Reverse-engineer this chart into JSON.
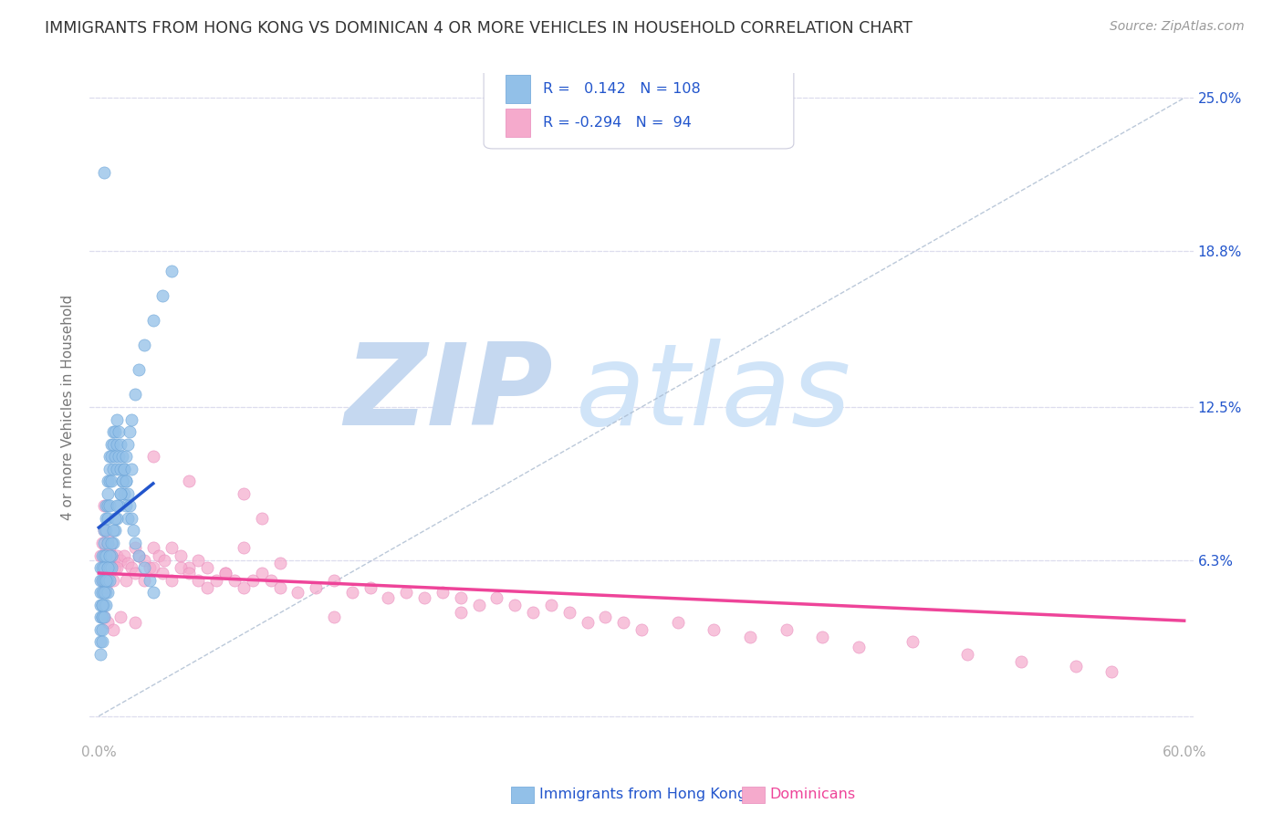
{
  "title": "IMMIGRANTS FROM HONG KONG VS DOMINICAN 4 OR MORE VEHICLES IN HOUSEHOLD CORRELATION CHART",
  "source": "Source: ZipAtlas.com",
  "xlabel_blue": "Immigrants from Hong Kong",
  "xlabel_pink": "Dominicans",
  "ylabel": "4 or more Vehicles in Household",
  "xlim": [
    -0.005,
    0.605
  ],
  "ylim": [
    -0.01,
    0.26
  ],
  "xticks": [
    0.0,
    0.1,
    0.2,
    0.3,
    0.4,
    0.5,
    0.6
  ],
  "xticklabels": [
    "0.0%",
    "",
    "",
    "",
    "",
    "",
    "60.0%"
  ],
  "yticks": [
    0.0,
    0.063,
    0.125,
    0.188,
    0.25
  ],
  "yticklabels_left": [
    "",
    "",
    "",
    "",
    ""
  ],
  "yticklabels_right": [
    "",
    "6.3%",
    "12.5%",
    "18.8%",
    "25.0%"
  ],
  "R_blue": 0.142,
  "N_blue": 108,
  "R_pink": -0.294,
  "N_pink": 94,
  "blue_scatter_color": "#92C0E8",
  "blue_scatter_edge": "#6AA3D8",
  "pink_scatter_color": "#F5AACC",
  "pink_scatter_edge": "#E888BB",
  "blue_line_color": "#2255CC",
  "pink_line_color": "#EE4499",
  "watermark_zip_color": "#C5D8F0",
  "watermark_atlas_color": "#D0E4F8",
  "background_color": "#FFFFFF",
  "legend_text_color": "#2255CC",
  "title_color": "#333333",
  "axis_label_color": "#777777",
  "right_tick_color": "#2255CC",
  "tick_color": "#aaaaaa",
  "grid_color": "#DDDDEE",
  "dashed_line_color": "#AABBD0",
  "blue_x": [
    0.001,
    0.001,
    0.001,
    0.001,
    0.001,
    0.002,
    0.002,
    0.002,
    0.002,
    0.002,
    0.002,
    0.003,
    0.003,
    0.003,
    0.003,
    0.003,
    0.004,
    0.004,
    0.004,
    0.004,
    0.005,
    0.005,
    0.005,
    0.005,
    0.005,
    0.006,
    0.006,
    0.006,
    0.006,
    0.007,
    0.007,
    0.007,
    0.008,
    0.008,
    0.008,
    0.009,
    0.009,
    0.01,
    0.01,
    0.01,
    0.011,
    0.011,
    0.012,
    0.012,
    0.013,
    0.013,
    0.014,
    0.014,
    0.015,
    0.015,
    0.016,
    0.016,
    0.017,
    0.018,
    0.019,
    0.02,
    0.022,
    0.025,
    0.028,
    0.03,
    0.001,
    0.001,
    0.001,
    0.002,
    0.002,
    0.002,
    0.003,
    0.003,
    0.004,
    0.004,
    0.005,
    0.005,
    0.006,
    0.006,
    0.007,
    0.007,
    0.008,
    0.009,
    0.01,
    0.011,
    0.012,
    0.013,
    0.014,
    0.015,
    0.016,
    0.017,
    0.018,
    0.02,
    0.022,
    0.025,
    0.03,
    0.035,
    0.04,
    0.002,
    0.003,
    0.004,
    0.005,
    0.006,
    0.007,
    0.008,
    0.009,
    0.01,
    0.012,
    0.015,
    0.018
  ],
  "blue_y": [
    0.06,
    0.055,
    0.05,
    0.045,
    0.04,
    0.065,
    0.06,
    0.055,
    0.05,
    0.045,
    0.04,
    0.075,
    0.07,
    0.065,
    0.06,
    0.055,
    0.085,
    0.08,
    0.075,
    0.065,
    0.095,
    0.09,
    0.085,
    0.08,
    0.07,
    0.105,
    0.1,
    0.095,
    0.085,
    0.11,
    0.105,
    0.095,
    0.115,
    0.11,
    0.1,
    0.115,
    0.105,
    0.12,
    0.11,
    0.1,
    0.115,
    0.105,
    0.11,
    0.1,
    0.105,
    0.095,
    0.1,
    0.09,
    0.095,
    0.085,
    0.09,
    0.08,
    0.085,
    0.08,
    0.075,
    0.07,
    0.065,
    0.06,
    0.055,
    0.05,
    0.035,
    0.03,
    0.025,
    0.04,
    0.035,
    0.03,
    0.045,
    0.04,
    0.05,
    0.045,
    0.055,
    0.05,
    0.06,
    0.055,
    0.065,
    0.06,
    0.07,
    0.075,
    0.08,
    0.085,
    0.09,
    0.095,
    0.1,
    0.105,
    0.11,
    0.115,
    0.12,
    0.13,
    0.14,
    0.15,
    0.16,
    0.17,
    0.18,
    0.045,
    0.05,
    0.055,
    0.06,
    0.065,
    0.07,
    0.075,
    0.08,
    0.085,
    0.09,
    0.095,
    0.1
  ],
  "blue_y_special": [
    0.22
  ],
  "blue_x_special": [
    0.003
  ],
  "pink_x": [
    0.001,
    0.002,
    0.003,
    0.004,
    0.005,
    0.006,
    0.007,
    0.008,
    0.009,
    0.01,
    0.012,
    0.014,
    0.016,
    0.018,
    0.02,
    0.022,
    0.025,
    0.028,
    0.03,
    0.033,
    0.036,
    0.04,
    0.045,
    0.05,
    0.055,
    0.06,
    0.07,
    0.08,
    0.09,
    0.1,
    0.002,
    0.004,
    0.006,
    0.008,
    0.01,
    0.015,
    0.02,
    0.025,
    0.03,
    0.035,
    0.04,
    0.045,
    0.05,
    0.055,
    0.06,
    0.065,
    0.07,
    0.075,
    0.08,
    0.085,
    0.09,
    0.095,
    0.1,
    0.11,
    0.12,
    0.13,
    0.14,
    0.15,
    0.16,
    0.17,
    0.18,
    0.19,
    0.2,
    0.21,
    0.22,
    0.23,
    0.24,
    0.25,
    0.26,
    0.27,
    0.28,
    0.29,
    0.3,
    0.32,
    0.34,
    0.36,
    0.38,
    0.4,
    0.42,
    0.45,
    0.48,
    0.51,
    0.54,
    0.56,
    0.003,
    0.005,
    0.008,
    0.012,
    0.02,
    0.03,
    0.05,
    0.08,
    0.13,
    0.2,
    0.003
  ],
  "pink_y": [
    0.065,
    0.07,
    0.075,
    0.068,
    0.072,
    0.068,
    0.065,
    0.062,
    0.06,
    0.065,
    0.063,
    0.065,
    0.062,
    0.06,
    0.068,
    0.065,
    0.063,
    0.06,
    0.068,
    0.065,
    0.063,
    0.068,
    0.065,
    0.06,
    0.063,
    0.06,
    0.058,
    0.068,
    0.08,
    0.062,
    0.055,
    0.052,
    0.058,
    0.055,
    0.06,
    0.055,
    0.058,
    0.055,
    0.06,
    0.058,
    0.055,
    0.06,
    0.058,
    0.055,
    0.052,
    0.055,
    0.058,
    0.055,
    0.052,
    0.055,
    0.058,
    0.055,
    0.052,
    0.05,
    0.052,
    0.055,
    0.05,
    0.052,
    0.048,
    0.05,
    0.048,
    0.05,
    0.048,
    0.045,
    0.048,
    0.045,
    0.042,
    0.045,
    0.042,
    0.038,
    0.04,
    0.038,
    0.035,
    0.038,
    0.035,
    0.032,
    0.035,
    0.032,
    0.028,
    0.03,
    0.025,
    0.022,
    0.02,
    0.018,
    0.04,
    0.038,
    0.035,
    0.04,
    0.038,
    0.105,
    0.095,
    0.09,
    0.04,
    0.042,
    0.085
  ]
}
